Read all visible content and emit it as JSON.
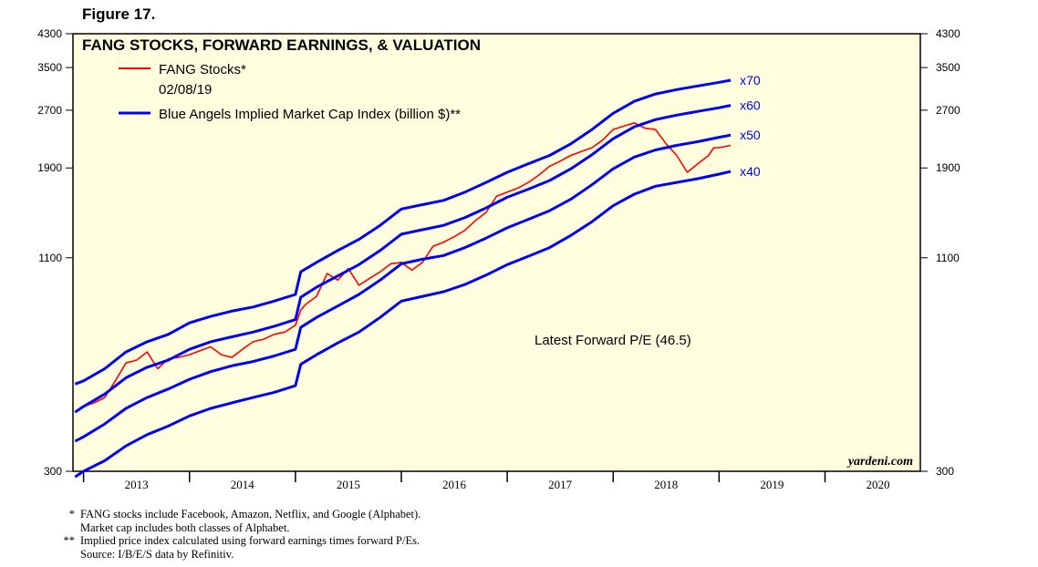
{
  "figure_label": "Figure 17.",
  "chart_data": {
    "type": "line",
    "title": "FANG STOCKS, FORWARD EARNINGS, & VALUATION",
    "scale": "log",
    "ylim": [
      300,
      4300
    ],
    "y_ticks": [
      300,
      1100,
      1900,
      2700,
      3500,
      4300
    ],
    "y_tick_labels": [
      "300",
      "1100",
      "1900",
      "2700",
      "3500",
      "4300"
    ],
    "xlim": [
      2012.9,
      2020.9
    ],
    "x_tick_labels": [
      "2013",
      "2014",
      "2015",
      "2016",
      "2017",
      "2018",
      "2019",
      "2020"
    ],
    "legend": {
      "fang_label": "FANG Stocks*",
      "fang_date": "02/08/19",
      "blue_label": "Blue Angels Implied Market Cap Index (billion $)**"
    },
    "colors": {
      "fang": "#ff0000",
      "blue": "#0000ee",
      "plot_bg": "#ffffe0"
    },
    "multiple_labels": [
      "x70",
      "x60",
      "x50",
      "x40"
    ],
    "annotation": "Latest Forward P/E (46.5)",
    "watermark": "yardeni.com",
    "series": [
      {
        "name": "FANG Stocks",
        "x": [
          2012.92,
          2013.0,
          2013.1,
          2013.2,
          2013.3,
          2013.4,
          2013.5,
          2013.6,
          2013.7,
          2013.8,
          2013.9,
          2014.0,
          2014.1,
          2014.2,
          2014.3,
          2014.4,
          2014.5,
          2014.6,
          2014.7,
          2014.8,
          2014.9,
          2015.0,
          2015.05,
          2015.1,
          2015.2,
          2015.3,
          2015.4,
          2015.5,
          2015.6,
          2015.7,
          2015.8,
          2015.9,
          2016.0,
          2016.1,
          2016.2,
          2016.3,
          2016.4,
          2016.5,
          2016.6,
          2016.7,
          2016.8,
          2016.9,
          2017.0,
          2017.1,
          2017.2,
          2017.3,
          2017.4,
          2017.5,
          2017.6,
          2017.7,
          2017.8,
          2017.9,
          2018.0,
          2018.1,
          2018.2,
          2018.3,
          2018.4,
          2018.5,
          2018.6,
          2018.7,
          2018.8,
          2018.9,
          2018.95,
          2019.0,
          2019.11
        ],
        "values": [
          430,
          445,
          455,
          470,
          520,
          580,
          590,
          620,
          560,
          595,
          600,
          610,
          625,
          640,
          610,
          600,
          630,
          660,
          670,
          690,
          700,
          730,
          800,
          830,
          870,
          1000,
          960,
          1030,
          930,
          970,
          1010,
          1060,
          1070,
          1020,
          1070,
          1180,
          1210,
          1250,
          1300,
          1380,
          1450,
          1600,
          1640,
          1680,
          1740,
          1820,
          1920,
          1980,
          2050,
          2100,
          2150,
          2250,
          2400,
          2450,
          2500,
          2420,
          2400,
          2200,
          2050,
          1850,
          1950,
          2050,
          2150,
          2150,
          2180
        ]
      },
      {
        "name": "Blue Angels x70",
        "x": [
          2012.92,
          2013.0,
          2013.2,
          2013.4,
          2013.6,
          2013.8,
          2014.0,
          2014.2,
          2014.4,
          2014.6,
          2014.8,
          2015.0,
          2015.05,
          2015.2,
          2015.4,
          2015.6,
          2015.8,
          2016.0,
          2016.2,
          2016.4,
          2016.6,
          2016.8,
          2017.0,
          2017.2,
          2017.4,
          2017.6,
          2017.8,
          2018.0,
          2018.2,
          2018.4,
          2018.6,
          2018.8,
          2019.0,
          2019.11
        ],
        "values": [
          510,
          520,
          560,
          620,
          660,
          690,
          740,
          770,
          795,
          815,
          845,
          880,
          1010,
          1070,
          1150,
          1230,
          1340,
          1480,
          1520,
          1560,
          1640,
          1740,
          1850,
          1950,
          2050,
          2200,
          2400,
          2650,
          2850,
          2980,
          3060,
          3130,
          3200,
          3240
        ]
      },
      {
        "name": "Blue Angels x60",
        "x": [
          2012.92,
          2013.0,
          2013.2,
          2013.4,
          2013.6,
          2013.8,
          2014.0,
          2014.2,
          2014.4,
          2014.6,
          2014.8,
          2015.0,
          2015.05,
          2015.2,
          2015.4,
          2015.6,
          2015.8,
          2016.0,
          2016.2,
          2016.4,
          2016.6,
          2016.8,
          2017.0,
          2017.2,
          2017.4,
          2017.6,
          2017.8,
          2018.0,
          2018.2,
          2018.4,
          2018.6,
          2018.8,
          2019.0,
          2019.11
        ],
        "values": [
          430,
          445,
          480,
          530,
          565,
          590,
          630,
          660,
          680,
          700,
          725,
          755,
          865,
          920,
          985,
          1055,
          1150,
          1270,
          1305,
          1340,
          1405,
          1490,
          1590,
          1670,
          1760,
          1890,
          2060,
          2270,
          2440,
          2550,
          2620,
          2680,
          2740,
          2780
        ]
      },
      {
        "name": "Blue Angels x50",
        "x": [
          2012.92,
          2013.0,
          2013.2,
          2013.4,
          2013.6,
          2013.8,
          2014.0,
          2014.2,
          2014.4,
          2014.6,
          2014.8,
          2015.0,
          2015.05,
          2015.2,
          2015.4,
          2015.6,
          2015.8,
          2016.0,
          2016.2,
          2016.4,
          2016.6,
          2016.8,
          2017.0,
          2017.2,
          2017.4,
          2017.6,
          2017.8,
          2018.0,
          2018.2,
          2018.4,
          2018.6,
          2018.8,
          2019.0,
          2019.11
        ],
        "values": [
          360,
          370,
          400,
          440,
          470,
          495,
          525,
          550,
          570,
          585,
          605,
          630,
          720,
          765,
          820,
          880,
          960,
          1060,
          1090,
          1115,
          1170,
          1240,
          1320,
          1390,
          1465,
          1570,
          1715,
          1890,
          2030,
          2120,
          2180,
          2230,
          2290,
          2320
        ]
      },
      {
        "name": "Blue Angels x40",
        "x": [
          2012.92,
          2013.0,
          2013.2,
          2013.4,
          2013.6,
          2013.8,
          2014.0,
          2014.2,
          2014.4,
          2014.6,
          2014.8,
          2015.0,
          2015.05,
          2015.2,
          2015.4,
          2015.6,
          2015.8,
          2016.0,
          2016.2,
          2016.4,
          2016.6,
          2016.8,
          2017.0,
          2017.2,
          2017.4,
          2017.6,
          2017.8,
          2018.0,
          2018.2,
          2018.4,
          2018.6,
          2018.8,
          2019.0,
          2019.11
        ],
        "values": [
          290,
          300,
          320,
          350,
          375,
          395,
          420,
          440,
          455,
          470,
          485,
          505,
          575,
          610,
          655,
          700,
          765,
          845,
          870,
          895,
          935,
          990,
          1055,
          1110,
          1170,
          1260,
          1370,
          1510,
          1620,
          1700,
          1740,
          1780,
          1830,
          1860
        ]
      }
    ]
  },
  "footnotes": [
    {
      "mark": "*",
      "text": "FANG stocks include Facebook, Amazon, Netflix, and Google (Alphabet)."
    },
    {
      "mark": "",
      "text": "Market cap includes both classes of Alphabet."
    },
    {
      "mark": "**",
      "text": "Implied price index calculated using forward earnings times forward P/Es."
    },
    {
      "mark": "",
      "text": "Source: I/B/E/S data by Refinitiv."
    }
  ]
}
